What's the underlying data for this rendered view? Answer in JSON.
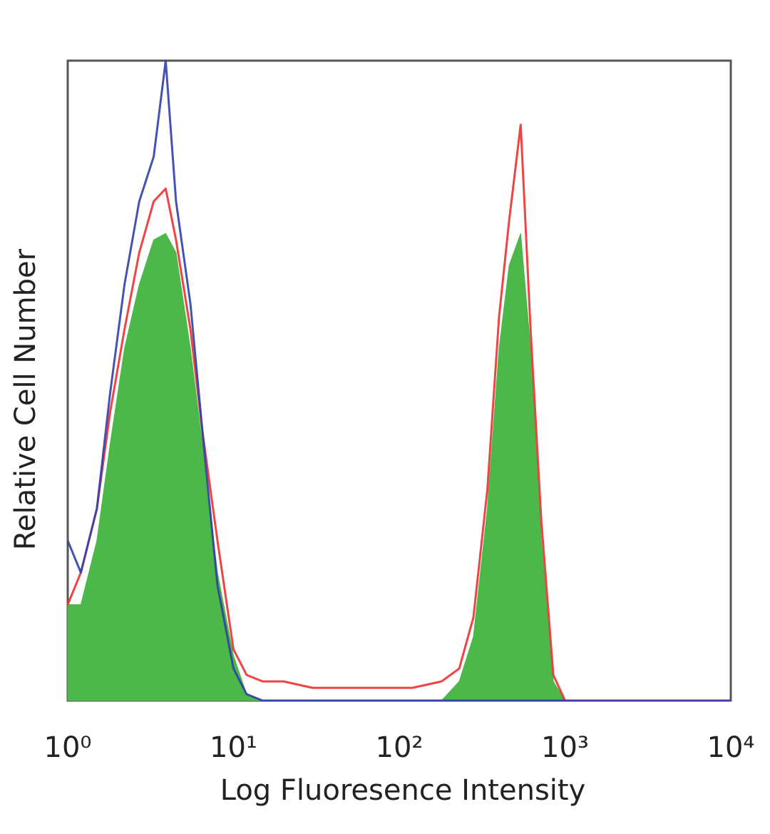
{
  "chart_data": {
    "type": "line",
    "xlabel": "Log Fluoresence Intensity",
    "ylabel": "Relative Cell Number",
    "xscale": "log",
    "xlim": [
      1,
      10000
    ],
    "ylim": [
      0,
      100
    ],
    "xticks": [
      {
        "value": 1,
        "label": "10⁰"
      },
      {
        "value": 10,
        "label": "10¹"
      },
      {
        "value": 100,
        "label": "10²"
      },
      {
        "value": 1000,
        "label": "10³"
      },
      {
        "value": 10000,
        "label": "10⁴"
      }
    ],
    "x": [
      1,
      1.2,
      1.5,
      1.8,
      2.2,
      2.7,
      3.3,
      3.9,
      4.5,
      5.5,
      6.5,
      8,
      10,
      12,
      15,
      20,
      30,
      50,
      80,
      120,
      180,
      230,
      280,
      340,
      400,
      460,
      540,
      620,
      720,
      850,
      1000,
      2000,
      10000
    ],
    "series": [
      {
        "color": "#4cb84a",
        "fill": true,
        "values": [
          15,
          15,
          25,
          40,
          55,
          65,
          72,
          73,
          70,
          55,
          40,
          20,
          7,
          1,
          0,
          0,
          0,
          0,
          0,
          0,
          0,
          3,
          10,
          30,
          55,
          68,
          73,
          55,
          25,
          3,
          0,
          0,
          0
        ]
      },
      {
        "color": "#ee3030",
        "fill": false,
        "values": [
          15,
          20,
          30,
          45,
          58,
          70,
          78,
          80,
          72,
          58,
          42,
          25,
          8,
          4,
          3,
          3,
          2,
          2,
          2,
          2,
          3,
          5,
          13,
          33,
          60,
          75,
          90,
          58,
          28,
          4,
          0,
          0,
          0
        ]
      },
      {
        "color": "#3040a8",
        "fill": false,
        "values": [
          25,
          20,
          30,
          48,
          65,
          78,
          85,
          100,
          78,
          62,
          42,
          18,
          5,
          1,
          0,
          0,
          0,
          0,
          0,
          0,
          0,
          0,
          0,
          0,
          0,
          0,
          0,
          0,
          0,
          0,
          0,
          0,
          0
        ]
      }
    ]
  }
}
